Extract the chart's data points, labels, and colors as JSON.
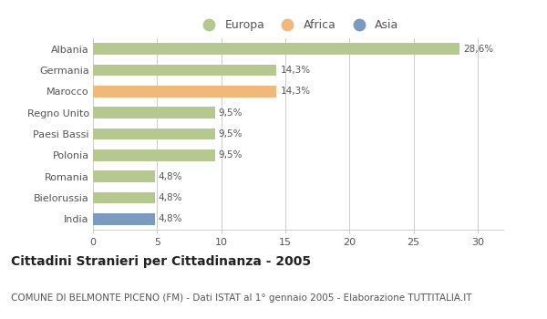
{
  "categories": [
    "Albania",
    "Germania",
    "Marocco",
    "Regno Unito",
    "Paesi Bassi",
    "Polonia",
    "Romania",
    "Bielorussia",
    "India"
  ],
  "values": [
    28.6,
    14.3,
    14.3,
    9.5,
    9.5,
    9.5,
    4.8,
    4.8,
    4.8
  ],
  "labels": [
    "28,6%",
    "14,3%",
    "14,3%",
    "9,5%",
    "9,5%",
    "9,5%",
    "4,8%",
    "4,8%",
    "4,8%"
  ],
  "colors": [
    "#b5c98e",
    "#b5c98e",
    "#f0b97a",
    "#b5c98e",
    "#b5c98e",
    "#b5c98e",
    "#b5c98e",
    "#b5c98e",
    "#7a9abf"
  ],
  "legend_items": [
    {
      "label": "Europa",
      "color": "#b5c98e"
    },
    {
      "label": "Africa",
      "color": "#f0b97a"
    },
    {
      "label": "Asia",
      "color": "#7a9abf"
    }
  ],
  "xlim": [
    0,
    32
  ],
  "xticks": [
    0,
    5,
    10,
    15,
    20,
    25,
    30
  ],
  "title": "Cittadini Stranieri per Cittadinanza - 2005",
  "subtitle": "COMUNE DI BELMONTE PICENO (FM) - Dati ISTAT al 1° gennaio 2005 - Elaborazione TUTTITALIA.IT",
  "title_fontsize": 10,
  "subtitle_fontsize": 7.5,
  "label_fontsize": 7.5,
  "tick_fontsize": 8,
  "legend_fontsize": 9,
  "bar_height": 0.55,
  "background_color": "#ffffff",
  "grid_color": "#cccccc",
  "text_color": "#555555",
  "title_color": "#222222"
}
